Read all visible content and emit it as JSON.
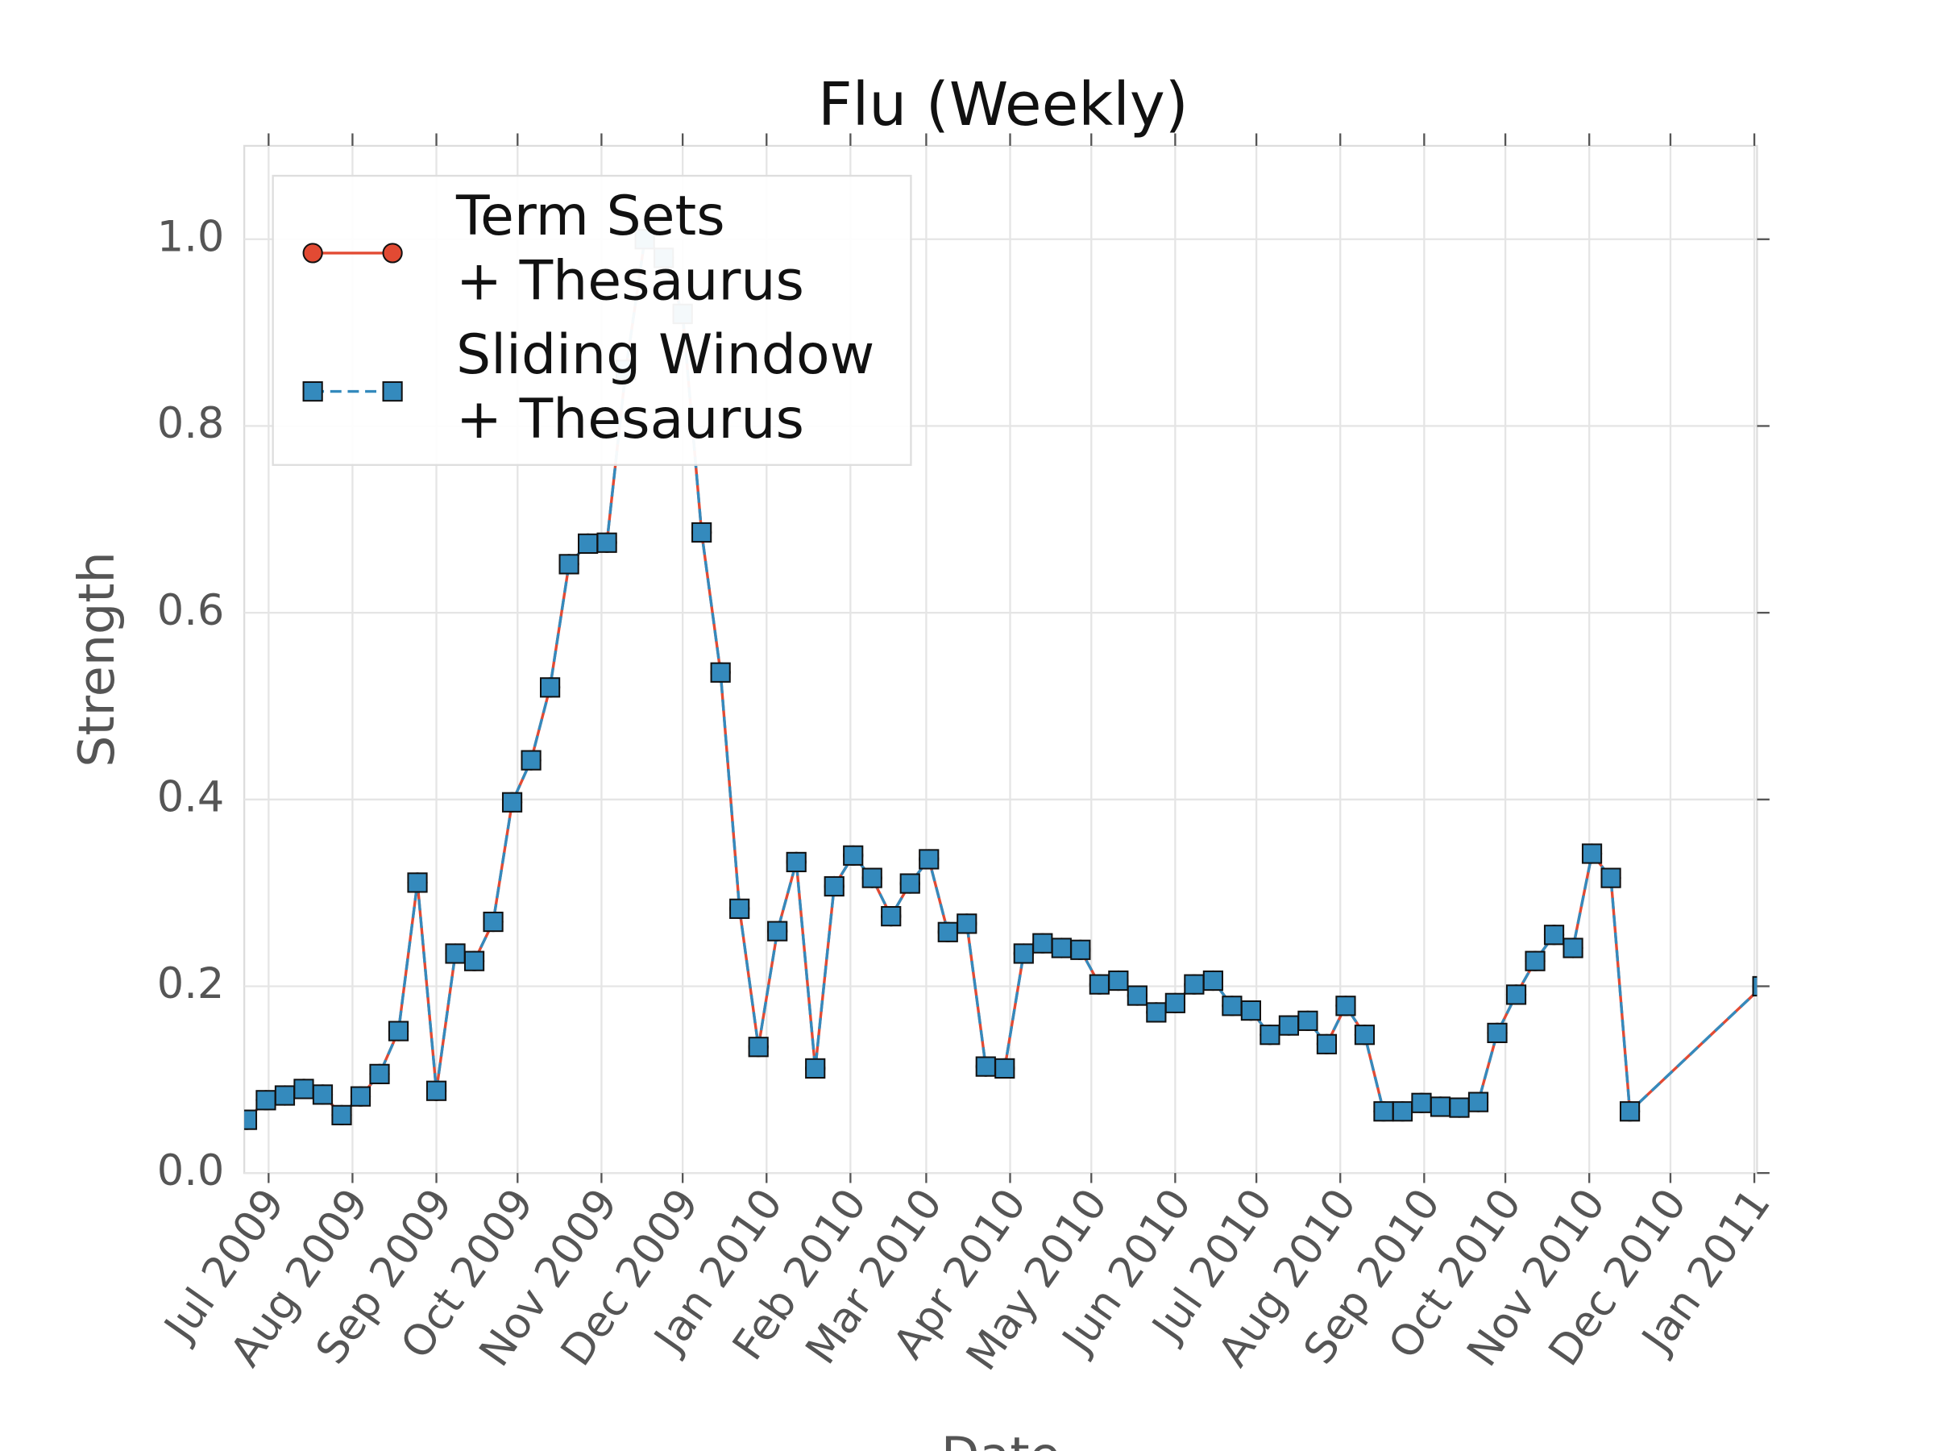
{
  "chart_data": {
    "type": "line",
    "title": "Flu (Weekly)",
    "xlabel": "Date",
    "ylabel": "Strength",
    "x": [
      "2009-06-23",
      "2009-06-30",
      "2009-07-07",
      "2009-07-14",
      "2009-07-21",
      "2009-07-28",
      "2009-08-04",
      "2009-08-11",
      "2009-08-18",
      "2009-08-25",
      "2009-09-01",
      "2009-09-08",
      "2009-09-15",
      "2009-09-22",
      "2009-09-29",
      "2009-10-06",
      "2009-10-13",
      "2009-10-20",
      "2009-10-27",
      "2009-11-03",
      "2009-11-10",
      "2009-11-17",
      "2009-11-24",
      "2009-12-01",
      "2009-12-08",
      "2009-12-15",
      "2009-12-22",
      "2009-12-29",
      "2010-01-05",
      "2010-01-12",
      "2010-01-19",
      "2010-01-26",
      "2010-02-02",
      "2010-02-09",
      "2010-02-16",
      "2010-02-23",
      "2010-03-02",
      "2010-03-09",
      "2010-03-16",
      "2010-03-23",
      "2010-03-30",
      "2010-04-06",
      "2010-04-13",
      "2010-04-20",
      "2010-04-27",
      "2010-05-04",
      "2010-05-11",
      "2010-05-18",
      "2010-05-25",
      "2010-06-01",
      "2010-06-08",
      "2010-06-15",
      "2010-06-22",
      "2010-06-29",
      "2010-07-06",
      "2010-07-13",
      "2010-07-20",
      "2010-07-27",
      "2010-08-03",
      "2010-08-10",
      "2010-08-17",
      "2010-08-24",
      "2010-08-31",
      "2010-09-07",
      "2010-09-14",
      "2010-09-21",
      "2010-09-28",
      "2010-10-05",
      "2010-10-12",
      "2010-10-19",
      "2010-10-26",
      "2010-11-02",
      "2010-11-09",
      "2010-11-16",
      "2011-01-04"
    ],
    "series": [
      {
        "name": "Term Sets\n+ Thesaurus",
        "color": "#e24a33",
        "marker": "circle",
        "linestyle": "solid",
        "values": [
          0.057,
          0.078,
          0.083,
          0.09,
          0.084,
          0.062,
          0.082,
          0.106,
          0.152,
          0.311,
          0.088,
          0.235,
          0.227,
          0.269,
          0.397,
          0.442,
          0.52,
          0.652,
          0.674,
          0.675,
          0.86,
          1.0,
          0.98,
          0.92,
          0.686,
          0.536,
          0.283,
          0.135,
          0.259,
          0.333,
          0.112,
          0.307,
          0.34,
          0.316,
          0.275,
          0.31,
          0.336,
          0.258,
          0.267,
          0.114,
          0.112,
          0.235,
          0.246,
          0.241,
          0.239,
          0.202,
          0.206,
          0.19,
          0.172,
          0.182,
          0.202,
          0.206,
          0.179,
          0.174,
          0.148,
          0.158,
          0.163,
          0.138,
          0.179,
          0.148,
          0.066,
          0.066,
          0.075,
          0.071,
          0.07,
          0.076,
          0.15,
          0.191,
          0.227,
          0.255,
          0.241,
          0.342,
          0.316,
          0.066,
          0.2
        ]
      },
      {
        "name": "Sliding Window\n+ Thesaurus",
        "color": "#348abd",
        "marker": "square",
        "linestyle": "dashed",
        "values": [
          0.057,
          0.078,
          0.083,
          0.09,
          0.084,
          0.062,
          0.082,
          0.106,
          0.152,
          0.311,
          0.088,
          0.235,
          0.227,
          0.269,
          0.397,
          0.442,
          0.52,
          0.652,
          0.674,
          0.675,
          0.86,
          1.0,
          0.98,
          0.92,
          0.686,
          0.536,
          0.283,
          0.135,
          0.259,
          0.333,
          0.112,
          0.307,
          0.34,
          0.316,
          0.275,
          0.31,
          0.336,
          0.258,
          0.267,
          0.114,
          0.112,
          0.235,
          0.246,
          0.241,
          0.239,
          0.202,
          0.206,
          0.19,
          0.172,
          0.182,
          0.202,
          0.206,
          0.179,
          0.174,
          0.148,
          0.158,
          0.163,
          0.138,
          0.179,
          0.148,
          0.066,
          0.066,
          0.075,
          0.071,
          0.07,
          0.076,
          0.15,
          0.191,
          0.227,
          0.255,
          0.241,
          0.342,
          0.316,
          0.066,
          0.2
        ]
      }
    ],
    "xlim": [
      "2009-06-22",
      "2011-01-02"
    ],
    "xticks": [
      {
        "value": "2009-07-01",
        "label": "Jul 2009"
      },
      {
        "value": "2009-08-01",
        "label": "Aug 2009"
      },
      {
        "value": "2009-09-01",
        "label": "Sep 2009"
      },
      {
        "value": "2009-10-01",
        "label": "Oct 2009"
      },
      {
        "value": "2009-11-01",
        "label": "Nov 2009"
      },
      {
        "value": "2009-12-01",
        "label": "Dec 2009"
      },
      {
        "value": "2010-01-01",
        "label": "Jan 2010"
      },
      {
        "value": "2010-02-01",
        "label": "Feb 2010"
      },
      {
        "value": "2010-03-01",
        "label": "Mar 2010"
      },
      {
        "value": "2010-04-01",
        "label": "Apr 2010"
      },
      {
        "value": "2010-05-01",
        "label": "May 2010"
      },
      {
        "value": "2010-06-01",
        "label": "Jun 2010"
      },
      {
        "value": "2010-07-01",
        "label": "Jul 2010"
      },
      {
        "value": "2010-08-01",
        "label": "Aug 2010"
      },
      {
        "value": "2010-09-01",
        "label": "Sep 2010"
      },
      {
        "value": "2010-10-01",
        "label": "Oct 2010"
      },
      {
        "value": "2010-11-01",
        "label": "Nov 2010"
      },
      {
        "value": "2010-12-01",
        "label": "Dec 2010"
      },
      {
        "value": "2011-01-01",
        "label": "Jan 2011"
      }
    ],
    "ylim": [
      0,
      1.1
    ],
    "yticks": [
      {
        "value": 0,
        "label": "0.0"
      },
      {
        "value": 0.2,
        "label": "0.2"
      },
      {
        "value": 0.4,
        "label": "0.4"
      },
      {
        "value": 0.6,
        "label": "0.6"
      },
      {
        "value": 0.8,
        "label": "0.8"
      },
      {
        "value": 1,
        "label": "1.0"
      }
    ],
    "grid": true,
    "legend": "upper left"
  }
}
